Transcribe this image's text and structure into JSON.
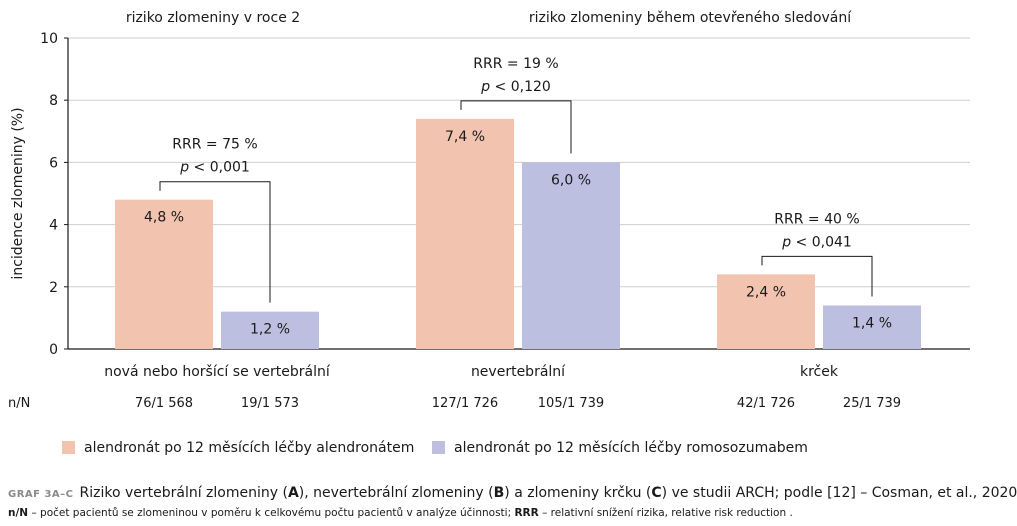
{
  "chart_data": {
    "type": "bar",
    "ylabel": "incidence zlomeniny (%)",
    "ylim": [
      0,
      10
    ],
    "yticks": [
      "0",
      "2",
      "4",
      "6",
      "8",
      "10"
    ],
    "grid": true,
    "section_titles": [
      "riziko zlomeniny v roce 2",
      "riziko zlomeniny během otevřeného sledování"
    ],
    "categories": [
      "nová nebo horšící se vertebrální",
      "nevertebrální",
      "krček"
    ],
    "series": [
      {
        "name": "alendronát po 12 měsících léčby alendronátem",
        "color": "#f2c4b0",
        "values": [
          4.8,
          7.4,
          2.4
        ],
        "labels": [
          "4,8 %",
          "7,4 %",
          "2,4 %"
        ]
      },
      {
        "name": "alendronát po 12 měsících léčby romosozumabem",
        "color": "#bcbfe0",
        "values": [
          1.2,
          6.0,
          1.4
        ],
        "labels": [
          "1,2 %",
          "6,0 %",
          "1,4 %"
        ]
      }
    ],
    "annotations": [
      {
        "rrr": "RRR = 75 %",
        "p_label": "p",
        "p_value": " < 0,001"
      },
      {
        "rrr": "RRR = 19 %",
        "p_label": "p",
        "p_value": " < 0,120"
      },
      {
        "rrr": "RRR = 40 %",
        "p_label": "p",
        "p_value": " < 0,041"
      }
    ],
    "nn_header": "n/N",
    "nn": [
      [
        "76/1 568",
        "19/1 573"
      ],
      [
        "127/1 726",
        "105/1 739"
      ],
      [
        "42/1 726",
        "25/1 739"
      ]
    ],
    "legend_position": "bottom-left"
  },
  "caption": {
    "label": "GRAF 3A–C",
    "parts": [
      "Riziko vertebrální zlomeniny (",
      "A",
      "), nevertebrální zlomeniny (",
      "B",
      ") a zlomeniny krčku (",
      "C",
      ") ve studii ARCH; podle [12] – Cosman, et al., 2020"
    ]
  },
  "footnote": {
    "nn_term": "n/N",
    "nn_text": " – počet pacientů se zlomeninou v poměru k celkovému počtu pacientů v analýze účinnosti; ",
    "rrr_term": "RRR",
    "rrr_text": " – relativní snížení rizika, relative risk reduction ."
  }
}
